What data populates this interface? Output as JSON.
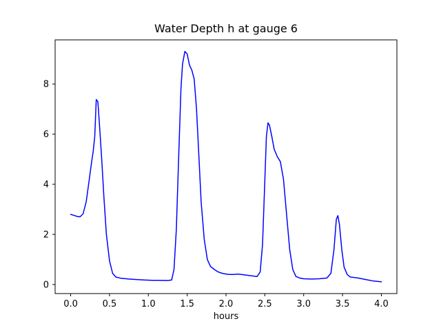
{
  "chart_data": {
    "type": "line",
    "title": "Water Depth h at gauge 6",
    "xlabel": "hours",
    "ylabel": "",
    "xlim": [
      -0.2,
      4.2
    ],
    "ylim": [
      -0.36,
      9.76
    ],
    "grid": false,
    "legend": "none",
    "line_color": "#0000ff",
    "line_width": 1.5,
    "x_ticks": [
      0.0,
      0.5,
      1.0,
      1.5,
      2.0,
      2.5,
      3.0,
      3.5,
      4.0
    ],
    "x_tick_labels": [
      "0.0",
      "0.5",
      "1.0",
      "1.5",
      "2.0",
      "2.5",
      "3.0",
      "3.5",
      "4.0"
    ],
    "y_ticks": [
      0,
      2,
      4,
      6,
      8
    ],
    "y_tick_labels": [
      "0",
      "2",
      "4",
      "6",
      "8"
    ],
    "series": [
      {
        "name": "water-depth-h",
        "color": "#0000ff",
        "x": [
          0.0,
          0.04,
          0.08,
          0.12,
          0.16,
          0.2,
          0.24,
          0.27,
          0.29,
          0.31,
          0.33,
          0.35,
          0.37,
          0.4,
          0.43,
          0.46,
          0.5,
          0.54,
          0.58,
          0.65,
          0.75,
          0.85,
          0.95,
          1.05,
          1.15,
          1.25,
          1.3,
          1.33,
          1.36,
          1.39,
          1.42,
          1.44,
          1.47,
          1.5,
          1.53,
          1.56,
          1.59,
          1.62,
          1.65,
          1.68,
          1.72,
          1.76,
          1.8,
          1.85,
          1.9,
          1.95,
          2.0,
          2.05,
          2.1,
          2.15,
          2.2,
          2.25,
          2.3,
          2.35,
          2.4,
          2.44,
          2.47,
          2.5,
          2.52,
          2.54,
          2.56,
          2.59,
          2.62,
          2.66,
          2.7,
          2.74,
          2.78,
          2.82,
          2.86,
          2.9,
          2.95,
          3.0,
          3.1,
          3.2,
          3.3,
          3.35,
          3.39,
          3.42,
          3.44,
          3.46,
          3.49,
          3.52,
          3.56,
          3.6,
          3.7,
          3.8,
          3.9,
          4.0
        ],
        "y": [
          2.8,
          2.76,
          2.72,
          2.7,
          2.82,
          3.3,
          4.2,
          4.9,
          5.3,
          5.9,
          7.38,
          7.3,
          6.4,
          5.0,
          3.4,
          2.0,
          0.95,
          0.45,
          0.3,
          0.25,
          0.22,
          0.2,
          0.18,
          0.17,
          0.17,
          0.16,
          0.18,
          0.6,
          2.2,
          5.0,
          7.8,
          8.8,
          9.3,
          9.2,
          8.75,
          8.55,
          8.2,
          7.0,
          5.2,
          3.3,
          1.8,
          1.0,
          0.72,
          0.6,
          0.5,
          0.45,
          0.42,
          0.4,
          0.4,
          0.42,
          0.4,
          0.38,
          0.36,
          0.34,
          0.32,
          0.5,
          1.6,
          4.2,
          5.9,
          6.45,
          6.35,
          5.9,
          5.4,
          5.1,
          4.9,
          4.2,
          2.8,
          1.4,
          0.6,
          0.32,
          0.26,
          0.23,
          0.22,
          0.23,
          0.26,
          0.45,
          1.4,
          2.6,
          2.75,
          2.4,
          1.4,
          0.7,
          0.4,
          0.3,
          0.26,
          0.2,
          0.14,
          0.11
        ]
      }
    ]
  }
}
